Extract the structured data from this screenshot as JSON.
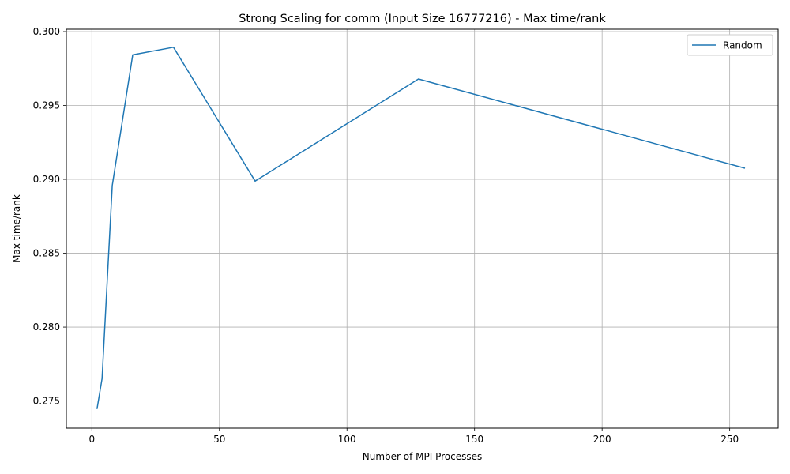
{
  "chart_data": {
    "type": "line",
    "title": "Strong Scaling for comm (Input Size 16777216) - Max time/rank",
    "xlabel": "Number of MPI Processes",
    "ylabel": "Max time/rank",
    "xlim": [
      -10,
      269
    ],
    "ylim": [
      0.27316,
      0.30016
    ],
    "xticks": [
      0,
      50,
      100,
      150,
      200,
      250
    ],
    "xtick_labels": [
      "0",
      "50",
      "100",
      "150",
      "200",
      "250"
    ],
    "yticks": [
      0.275,
      0.28,
      0.285,
      0.29,
      0.295,
      0.3
    ],
    "ytick_labels": [
      "0.275",
      "0.280",
      "0.285",
      "0.290",
      "0.295",
      "0.300"
    ],
    "grid": true,
    "legend_position": "top-right",
    "series": [
      {
        "name": "Random",
        "color": "#1f77b4",
        "x": [
          2,
          4,
          8,
          16,
          32,
          64,
          128,
          256
        ],
        "y": [
          0.27446,
          0.27651,
          0.28958,
          0.29843,
          0.29894,
          0.28988,
          0.29679,
          0.29075
        ]
      }
    ]
  }
}
